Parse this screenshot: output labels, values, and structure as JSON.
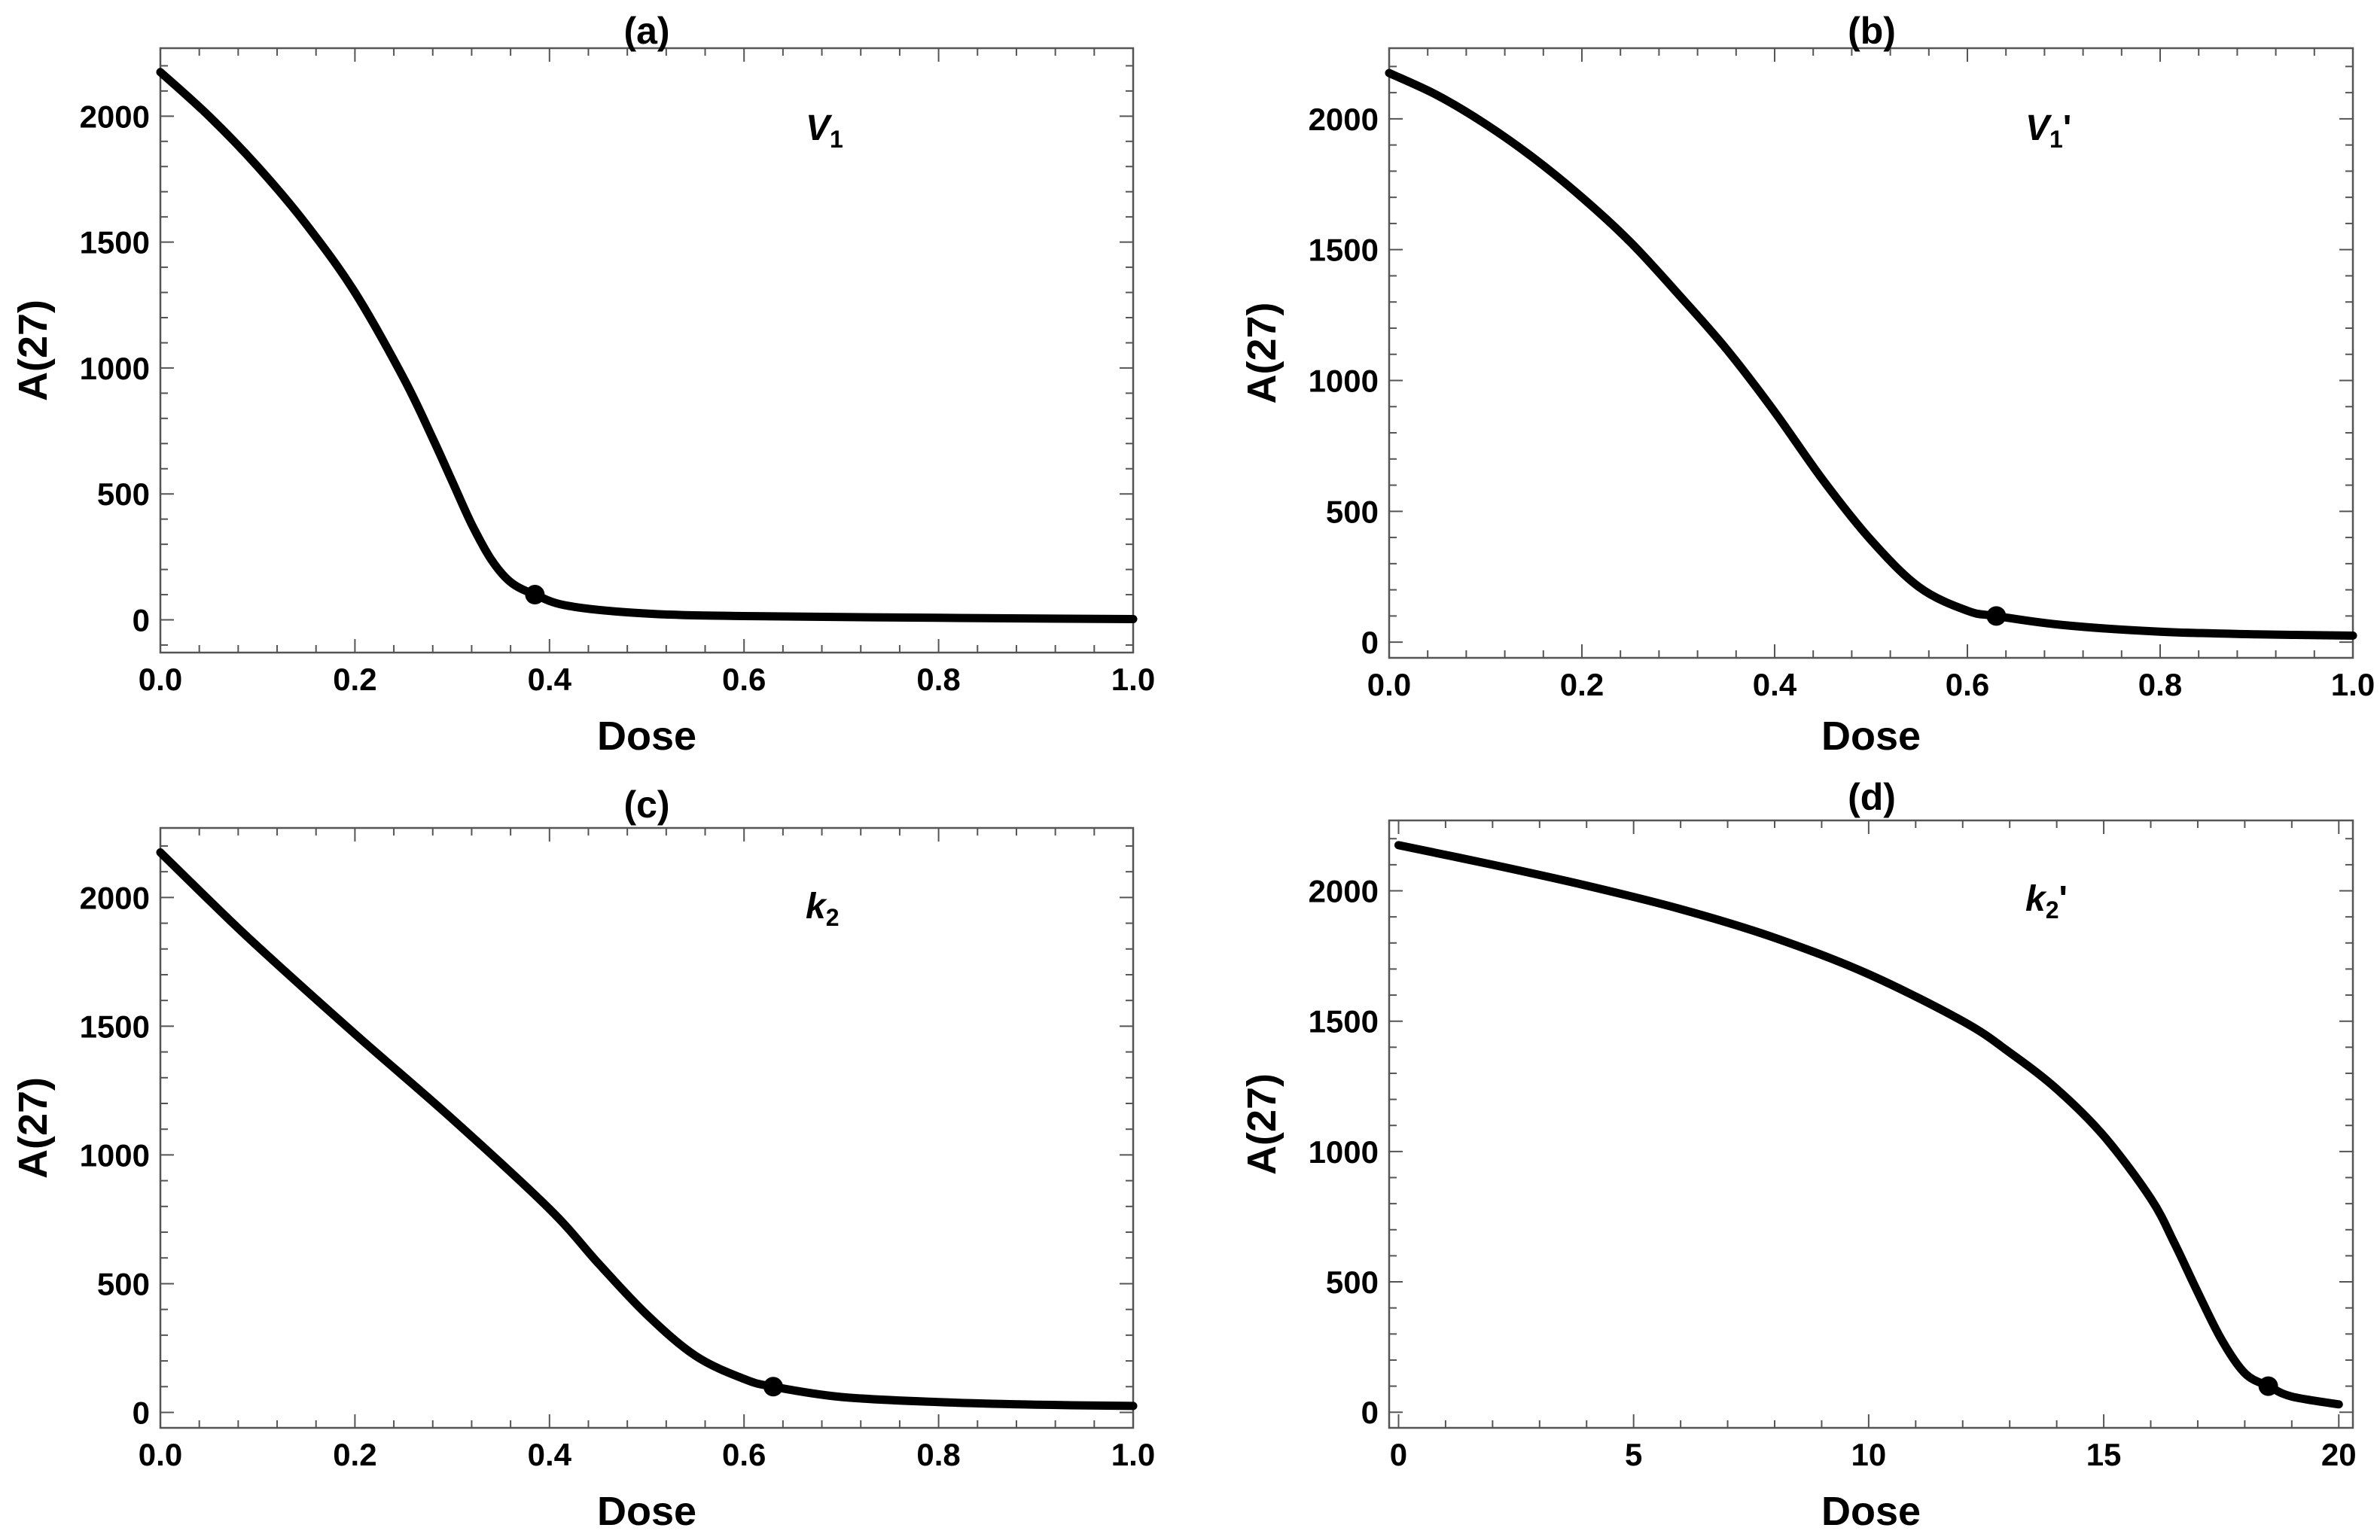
{
  "chart_data": [
    {
      "panel": "(a)",
      "type": "line",
      "title": "(a)",
      "param": {
        "base": "V",
        "sub": "1",
        "prime": ""
      },
      "xlabel": "Dose",
      "ylabel": "A(27)",
      "xlim": [
        0,
        1
      ],
      "ylim": [
        -130,
        2270
      ],
      "xticks": [
        0.0,
        0.2,
        0.4,
        0.6,
        0.8,
        1.0
      ],
      "xtick_labels": [
        "0.0",
        "0.2",
        "0.4",
        "0.6",
        "0.8",
        "1.0"
      ],
      "yticks": [
        0,
        500,
        1000,
        1500,
        2000
      ],
      "ytick_labels": [
        "0",
        "500",
        "1000",
        "1500",
        "2000"
      ],
      "x": [
        0,
        0.05,
        0.1,
        0.15,
        0.2,
        0.25,
        0.28,
        0.3,
        0.32,
        0.34,
        0.36,
        0.385,
        0.42,
        0.5,
        0.6,
        0.8,
        1.0
      ],
      "y": [
        2175,
        2000,
        1800,
        1570,
        1300,
        960,
        720,
        550,
        380,
        240,
        150,
        100,
        55,
        25,
        15,
        8,
        3
      ],
      "marker": {
        "x": 0.385,
        "y": 100
      }
    },
    {
      "panel": "(b)",
      "type": "line",
      "title": "(b)",
      "param": {
        "base": "V",
        "sub": "1",
        "prime": "'"
      },
      "xlabel": "Dose",
      "ylabel": "A(27)",
      "xlim": [
        0,
        1
      ],
      "ylim": [
        -60,
        2270
      ],
      "xticks": [
        0.0,
        0.2,
        0.4,
        0.6,
        0.8,
        1.0
      ],
      "xtick_labels": [
        "0.0",
        "0.2",
        "0.4",
        "0.6",
        "0.8",
        "1.0"
      ],
      "yticks": [
        0,
        500,
        1000,
        1500,
        2000
      ],
      "ytick_labels": [
        "0",
        "500",
        "1000",
        "1500",
        "2000"
      ],
      "x": [
        0,
        0.05,
        0.1,
        0.15,
        0.2,
        0.25,
        0.3,
        0.35,
        0.4,
        0.45,
        0.5,
        0.55,
        0.6,
        0.63,
        0.7,
        0.8,
        0.9,
        1.0
      ],
      "y": [
        2175,
        2090,
        1980,
        1850,
        1700,
        1530,
        1330,
        1120,
        880,
        620,
        390,
        210,
        120,
        100,
        65,
        40,
        30,
        25
      ],
      "marker": {
        "x": 0.63,
        "y": 100
      }
    },
    {
      "panel": "(c)",
      "type": "line",
      "title": "(c)",
      "param": {
        "base": "k",
        "sub": "2",
        "prime": ""
      },
      "xlabel": "Dose",
      "ylabel": "A(27)",
      "xlim": [
        0,
        1
      ],
      "ylim": [
        -60,
        2270
      ],
      "xticks": [
        0.0,
        0.2,
        0.4,
        0.6,
        0.8,
        1.0
      ],
      "xtick_labels": [
        "0.0",
        "0.2",
        "0.4",
        "0.6",
        "0.8",
        "1.0"
      ],
      "yticks": [
        0,
        500,
        1000,
        1500,
        2000
      ],
      "ytick_labels": [
        "0",
        "500",
        "1000",
        "1500",
        "2000"
      ],
      "x": [
        0,
        0.05,
        0.1,
        0.2,
        0.3,
        0.4,
        0.45,
        0.5,
        0.55,
        0.6,
        0.63,
        0.7,
        0.8,
        0.9,
        1.0
      ],
      "y": [
        2175,
        1990,
        1810,
        1470,
        1140,
        790,
        580,
        380,
        220,
        130,
        100,
        60,
        40,
        30,
        25
      ],
      "marker": {
        "x": 0.63,
        "y": 100
      }
    },
    {
      "panel": "(d)",
      "type": "line",
      "title": "(d)",
      "param": {
        "base": "k",
        "sub": "2",
        "prime": "'"
      },
      "xlabel": "Dose",
      "ylabel": "A(27)",
      "xlim": [
        -0.2,
        20.3
      ],
      "ylim": [
        -60,
        2270
      ],
      "xticks": [
        0,
        5,
        10,
        15,
        20
      ],
      "xtick_labels": [
        "0",
        "5",
        "10",
        "15",
        "20"
      ],
      "yticks": [
        0,
        500,
        1000,
        1500,
        2000
      ],
      "ytick_labels": [
        "0",
        "500",
        "1000",
        "1500",
        "2000"
      ],
      "x": [
        0,
        2,
        4,
        6,
        8,
        10,
        12,
        13,
        14,
        15,
        16,
        16.5,
        17,
        17.5,
        18,
        18.5,
        19,
        20
      ],
      "y": [
        2175,
        2100,
        2020,
        1930,
        1820,
        1680,
        1500,
        1380,
        1240,
        1060,
        820,
        650,
        460,
        280,
        150,
        100,
        60,
        30
      ],
      "marker": {
        "x": 18.5,
        "y": 100
      }
    }
  ]
}
